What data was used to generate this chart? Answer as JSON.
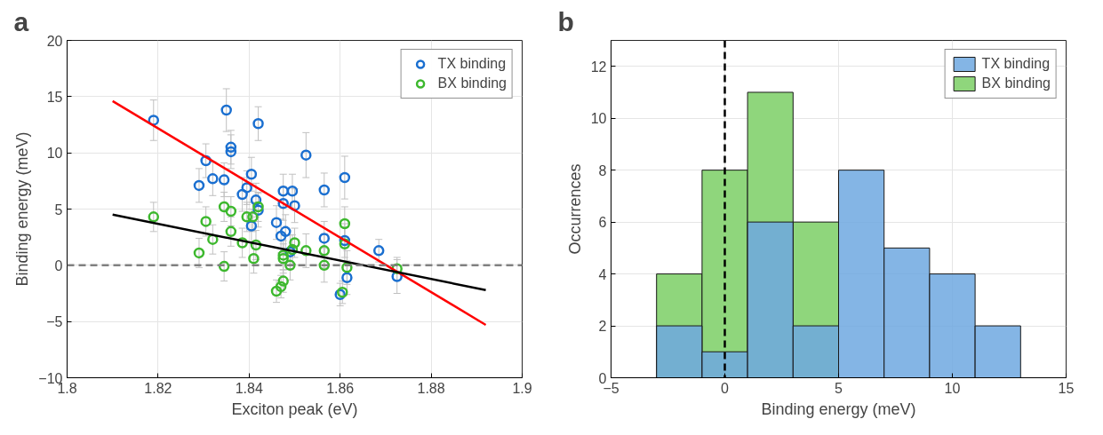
{
  "chart_data": [
    {
      "type": "scatter",
      "annotations": [
        "a"
      ],
      "xlabel": "Exciton peak (eV)",
      "ylabel": "Binding energy (meV)",
      "xlim": [
        1.8,
        1.9
      ],
      "xticks": [
        1.8,
        1.82,
        1.84,
        1.86,
        1.88,
        1.9
      ],
      "ylim": [
        -10,
        20
      ],
      "yticks": [
        -10,
        -5,
        0,
        5,
        10,
        15,
        20
      ],
      "grid": true,
      "legend": "top right",
      "series": [
        {
          "name": "TX binding",
          "color": "#1a6fd0",
          "marker": "circle",
          "x": [
            1.819,
            1.829,
            1.8305,
            1.832,
            1.8345,
            1.835,
            1.836,
            1.836,
            1.8385,
            1.8395,
            1.8405,
            1.8405,
            1.8415,
            1.842,
            1.842,
            1.846,
            1.847,
            1.8475,
            1.8475,
            1.848,
            1.849,
            1.8495,
            1.85,
            1.8525,
            1.8565,
            1.8565,
            1.86,
            1.861,
            1.861,
            1.8615,
            1.8685,
            1.8725
          ],
          "values": [
            12.9,
            7.1,
            9.3,
            7.7,
            7.6,
            13.8,
            10.5,
            10.1,
            6.3,
            6.9,
            8.1,
            3.5,
            5.8,
            12.6,
            4.9,
            3.8,
            2.6,
            6.6,
            5.5,
            3.0,
            1.2,
            6.6,
            5.3,
            9.8,
            6.7,
            2.4,
            -2.6,
            7.8,
            2.2,
            -1.1,
            1.3,
            -1.0
          ],
          "errors": [
            1.8,
            1.5,
            1.5,
            1.5,
            1.5,
            1.9,
            1.5,
            1.5,
            1.5,
            1.5,
            1.5,
            1.5,
            1.5,
            1.5,
            1.5,
            1.5,
            1.5,
            1.5,
            1.5,
            1.5,
            1.5,
            1.5,
            1.5,
            2.0,
            1.5,
            1.5,
            1.0,
            1.9,
            1.5,
            1.5,
            1.0,
            1.5
          ]
        },
        {
          "name": "BX binding",
          "color": "#3db82e",
          "marker": "circle",
          "x": [
            1.819,
            1.829,
            1.8305,
            1.832,
            1.8345,
            1.8345,
            1.836,
            1.836,
            1.8385,
            1.8395,
            1.8408,
            1.841,
            1.8415,
            1.842,
            1.846,
            1.847,
            1.8475,
            1.8475,
            1.8475,
            1.849,
            1.8495,
            1.85,
            1.8525,
            1.8565,
            1.8565,
            1.8605,
            1.861,
            1.861,
            1.8615,
            1.8725
          ],
          "values": [
            4.3,
            1.1,
            3.9,
            2.3,
            -0.1,
            5.2,
            4.8,
            3.0,
            2.0,
            4.3,
            4.3,
            0.6,
            1.8,
            5.2,
            -2.3,
            -1.9,
            -1.4,
            0.9,
            0.6,
            0.0,
            1.4,
            2.0,
            1.3,
            1.3,
            0.0,
            -2.4,
            3.7,
            1.9,
            -0.2,
            -0.3
          ],
          "errors": [
            1.3,
            1.3,
            1.3,
            1.3,
            1.3,
            1.3,
            1.3,
            1.3,
            1.3,
            1.3,
            1.3,
            1.3,
            1.3,
            1.3,
            1.0,
            1.0,
            1.0,
            1.3,
            1.3,
            1.3,
            1.3,
            1.3,
            1.5,
            1.5,
            1.5,
            1.0,
            1.5,
            1.5,
            1.5,
            1.0
          ]
        },
        {
          "type": "line",
          "color": "#ff0000",
          "x": [
            1.81,
            1.892
          ],
          "values": [
            14.6,
            -5.3
          ]
        },
        {
          "type": "line",
          "color": "#000000",
          "x": [
            1.81,
            1.892
          ],
          "values": [
            4.5,
            -2.2
          ]
        }
      ],
      "ref_lines": [
        {
          "axis": "y",
          "value": 0,
          "color": "#808080",
          "line_style": "dashed"
        }
      ]
    },
    {
      "type": "histogram",
      "annotations": [
        "b"
      ],
      "xlabel": "Binding energy (meV)",
      "ylabel": "Occurrences",
      "xlim": [
        -5,
        15
      ],
      "xticks": [
        -5,
        0,
        5,
        10,
        15
      ],
      "ylim": [
        0,
        13
      ],
      "yticks": [
        0,
        2,
        4,
        6,
        8,
        10,
        12
      ],
      "grid": true,
      "legend": "top right",
      "bins": [
        -3,
        -1,
        1,
        3,
        5,
        7,
        9,
        11,
        13
      ],
      "series": [
        {
          "name": "TX binding",
          "color": "#6fa8e0",
          "values": [
            2,
            1,
            6,
            2,
            8,
            5,
            4,
            2
          ]
        },
        {
          "name": "BX binding",
          "color": "#8fd67c",
          "values": [
            4,
            8,
            11,
            6,
            0,
            0,
            0,
            0
          ]
        }
      ],
      "ref_lines": [
        {
          "axis": "x",
          "value": 0,
          "color": "#000000",
          "line_style": "dashed"
        }
      ]
    }
  ]
}
